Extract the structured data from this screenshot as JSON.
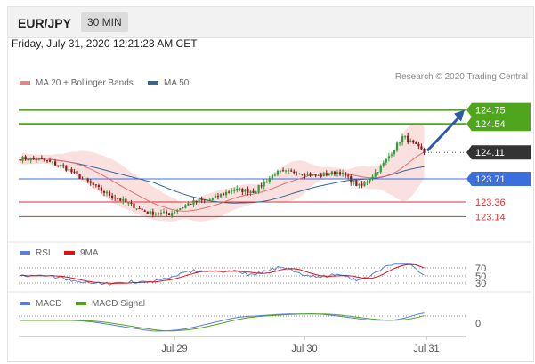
{
  "header": {
    "pair": "EUR/JPY",
    "timeframe": "30 MIN"
  },
  "datetime": "Friday, July 31, 2020 12:21:23 AM CET",
  "legend": {
    "ma20": {
      "label": "MA 20 + Bollinger Bands",
      "color": "#f08080"
    },
    "ma50": {
      "label": "MA 50",
      "color": "#336699"
    }
  },
  "credit": "Research © 2020 Trading Central",
  "colors": {
    "up": "#2e9e3a",
    "down": "#8b1a1a",
    "target": "#4fa51c",
    "current": "#333333",
    "pivot": "#3b6fe0",
    "support": "#d33333",
    "arrow": "#2b5aa8"
  },
  "chart_data": [
    {
      "type": "candlestick",
      "ylim": [
        122.85,
        125.0
      ],
      "x_ticks": [
        "Jul 29",
        "Jul 30",
        "Jul 31"
      ],
      "close_approx": [
        124.02,
        124.0,
        123.9,
        123.7,
        123.5,
        123.35,
        123.2,
        123.18,
        123.35,
        123.4,
        123.55,
        123.52,
        123.8,
        123.82,
        123.75,
        123.82,
        123.58,
        123.9,
        124.35,
        124.11
      ],
      "levels": [
        {
          "label": "124.75",
          "value": 124.75,
          "kind": "target"
        },
        {
          "label": "124.54",
          "value": 124.54,
          "kind": "target"
        },
        {
          "label": "124.11",
          "value": 124.11,
          "kind": "current"
        },
        {
          "label": "123.71",
          "value": 123.71,
          "kind": "pivot"
        },
        {
          "label": "123.36",
          "value": 123.36,
          "kind": "support"
        },
        {
          "label": "123.14",
          "value": 123.14,
          "kind": "support"
        }
      ]
    },
    {
      "type": "line",
      "title": "RSI",
      "series": [
        {
          "name": "RSI",
          "color": "#5b7be0"
        },
        {
          "name": "9MA",
          "color": "#dd1111"
        }
      ],
      "levels": [
        "70",
        "50",
        "30"
      ]
    },
    {
      "type": "line",
      "title": "MACD",
      "series": [
        {
          "name": "MACD",
          "color": "#5b7be0"
        },
        {
          "name": "MACD Signal",
          "color": "#4fa51c"
        }
      ],
      "levels": [
        "0"
      ]
    }
  ]
}
